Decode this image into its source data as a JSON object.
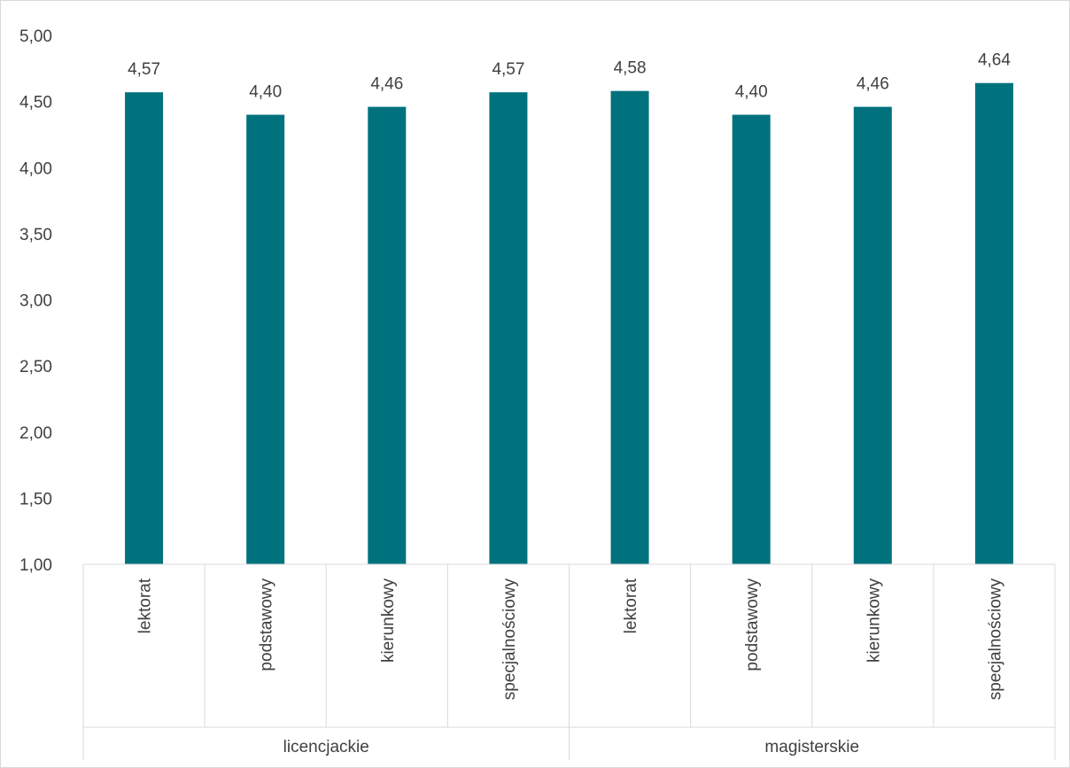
{
  "chart_data": {
    "type": "bar",
    "groups": [
      {
        "label": "licencjackie",
        "categories": [
          "lektorat",
          "podstawowy",
          "kierunkowy",
          "specjalnościowy"
        ],
        "values": [
          4.57,
          4.4,
          4.46,
          4.57
        ]
      },
      {
        "label": "magisterskie",
        "categories": [
          "lektorat",
          "podstawowy",
          "kierunkowy",
          "specjalnościowy"
        ],
        "values": [
          4.58,
          4.4,
          4.46,
          4.64
        ]
      }
    ],
    "data_labels": [
      "4,57",
      "4,40",
      "4,46",
      "4,57",
      "4,58",
      "4,40",
      "4,46",
      "4,64"
    ],
    "ylim": [
      1.0,
      5.0
    ],
    "yticks": [
      "1,00",
      "1,50",
      "2,00",
      "2,50",
      "3,00",
      "3,50",
      "4,00",
      "4,50",
      "5,00"
    ],
    "bar_color": "#00727d",
    "grid": false,
    "legend": "none",
    "title": "",
    "xlabel": "",
    "ylabel": ""
  }
}
